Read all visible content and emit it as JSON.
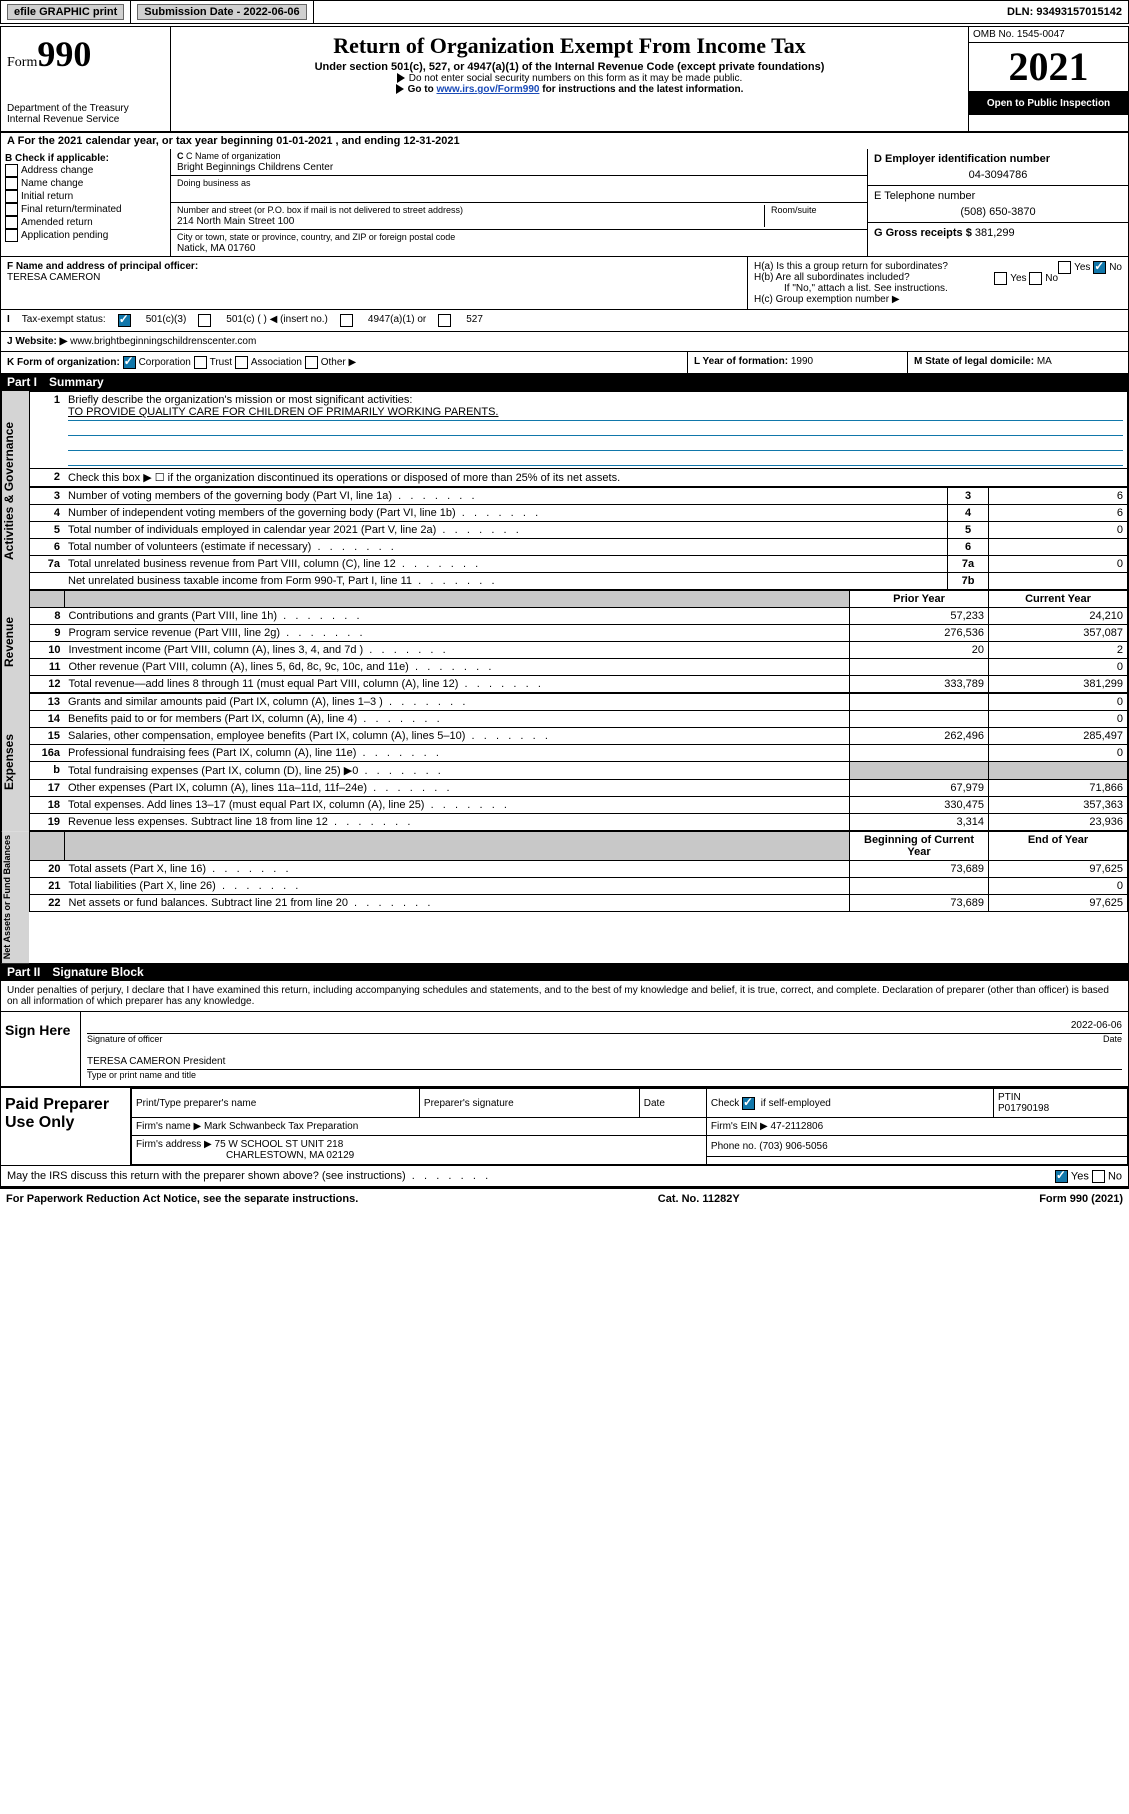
{
  "top": {
    "efile": "efile GRAPHIC print",
    "subDateLbl": "Submission Date - ",
    "subDate": "2022-06-06",
    "dlnLbl": "DLN: ",
    "dln": "93493157015142"
  },
  "hdr": {
    "formWord": "Form",
    "formNum": "990",
    "title": "Return of Organization Exempt From Income Tax",
    "sub": "Under section 501(c), 527, or 4947(a)(1) of the Internal Revenue Code (except private foundations)",
    "note1": "Do not enter social security numbers on this form as it may be made public.",
    "note2": "Go to ",
    "note2link": "www.irs.gov/Form990",
    "note2b": " for instructions and the latest information.",
    "dept": "Department of the Treasury",
    "irs": "Internal Revenue Service",
    "omb": "OMB No. 1545-0047",
    "year": "2021",
    "open": "Open to Public Inspection"
  },
  "A": {
    "text": "For the 2021 calendar year, or tax year beginning ",
    "d1": "01-01-2021",
    "mid": " , and ending ",
    "d2": "12-31-2021"
  },
  "B": {
    "lbl": "B Check if applicable:",
    "items": [
      "Address change",
      "Name change",
      "Initial return",
      "Final return/terminated",
      "Amended return",
      "Application pending"
    ]
  },
  "C": {
    "nameLbl": "C Name of organization",
    "name": "Bright Beginnings Childrens Center",
    "dbaLbl": "Doing business as",
    "dba": "",
    "addrLbl": "Number and street (or P.O. box if mail is not delivered to street address)",
    "roomLbl": "Room/suite",
    "addr": "214 North Main Street 100",
    "cityLbl": "City or town, state or province, country, and ZIP or foreign postal code",
    "city": "Natick, MA  01760"
  },
  "D": {
    "lbl": "D Employer identification number",
    "val": "04-3094786"
  },
  "E": {
    "lbl": "E Telephone number",
    "val": "(508) 650-3870"
  },
  "G": {
    "lbl": "G Gross receipts $ ",
    "val": "381,299"
  },
  "F": {
    "lbl": "F  Name and address of principal officer:",
    "val": "TERESA CAMERON"
  },
  "H": {
    "a": "H(a)  Is this a group return for subordinates?",
    "b": "H(b)  Are all subordinates included?",
    "bnote": "If \"No,\" attach a list. See instructions.",
    "c": "H(c)  Group exemption number ▶",
    "yes": "Yes",
    "no": "No"
  },
  "I": {
    "lbl": "Tax-exempt status:",
    "o1": "501(c)(3)",
    "o2": "501(c) (  ) ◀ (insert no.)",
    "o3": "4947(a)(1) or",
    "o4": "527"
  },
  "J": {
    "lbl": "Website: ▶",
    "val": "www.brightbeginningschildrenscenter.com"
  },
  "K": {
    "lbl": "K Form of organization:",
    "c": "Corporation",
    "t": "Trust",
    "a": "Association",
    "o": "Other ▶"
  },
  "L": {
    "lbl": "L Year of formation: ",
    "val": "1990"
  },
  "M": {
    "lbl": "M State of legal domicile: ",
    "val": "MA"
  },
  "P1": {
    "bar": "Part I",
    "title": "Summary",
    "l1": "Briefly describe the organization's mission or most significant activities:",
    "mission": "TO PROVIDE QUALITY CARE FOR CHILDREN OF PRIMARILY WORKING PARENTS.",
    "l2": "Check this box ▶ ☐  if the organization discontinued its operations or disposed of more than 25% of its net assets.",
    "rows": [
      {
        "n": "3",
        "t": "Number of voting members of the governing body (Part VI, line 1a)",
        "ln": "3",
        "v": "6"
      },
      {
        "n": "4",
        "t": "Number of independent voting members of the governing body (Part VI, line 1b)",
        "ln": "4",
        "v": "6"
      },
      {
        "n": "5",
        "t": "Total number of individuals employed in calendar year 2021 (Part V, line 2a)",
        "ln": "5",
        "v": "0"
      },
      {
        "n": "6",
        "t": "Total number of volunteers (estimate if necessary)",
        "ln": "6",
        "v": ""
      },
      {
        "n": "7a",
        "t": "Total unrelated business revenue from Part VIII, column (C), line 12",
        "ln": "7a",
        "v": "0"
      },
      {
        "n": "",
        "t": "Net unrelated business taxable income from Form 990-T, Part I, line 11",
        "ln": "7b",
        "v": ""
      }
    ],
    "colPrior": "Prior Year",
    "colCurr": "Current Year",
    "rev": [
      {
        "n": "8",
        "t": "Contributions and grants (Part VIII, line 1h)",
        "p": "57,233",
        "c": "24,210"
      },
      {
        "n": "9",
        "t": "Program service revenue (Part VIII, line 2g)",
        "p": "276,536",
        "c": "357,087"
      },
      {
        "n": "10",
        "t": "Investment income (Part VIII, column (A), lines 3, 4, and 7d )",
        "p": "20",
        "c": "2"
      },
      {
        "n": "11",
        "t": "Other revenue (Part VIII, column (A), lines 5, 6d, 8c, 9c, 10c, and 11e)",
        "p": "",
        "c": "0"
      },
      {
        "n": "12",
        "t": "Total revenue—add lines 8 through 11 (must equal Part VIII, column (A), line 12)",
        "p": "333,789",
        "c": "381,299"
      }
    ],
    "exp": [
      {
        "n": "13",
        "t": "Grants and similar amounts paid (Part IX, column (A), lines 1–3 )",
        "p": "",
        "c": "0"
      },
      {
        "n": "14",
        "t": "Benefits paid to or for members (Part IX, column (A), line 4)",
        "p": "",
        "c": "0"
      },
      {
        "n": "15",
        "t": "Salaries, other compensation, employee benefits (Part IX, column (A), lines 5–10)",
        "p": "262,496",
        "c": "285,497"
      },
      {
        "n": "16a",
        "t": "Professional fundraising fees (Part IX, column (A), line 11e)",
        "p": "",
        "c": "0"
      },
      {
        "n": "b",
        "t": "Total fundraising expenses (Part IX, column (D), line 25) ▶0",
        "p": "gray",
        "c": "gray"
      },
      {
        "n": "17",
        "t": "Other expenses (Part IX, column (A), lines 11a–11d, 11f–24e)",
        "p": "67,979",
        "c": "71,866"
      },
      {
        "n": "18",
        "t": "Total expenses. Add lines 13–17 (must equal Part IX, column (A), line 25)",
        "p": "330,475",
        "c": "357,363"
      },
      {
        "n": "19",
        "t": "Revenue less expenses. Subtract line 18 from line 12",
        "p": "3,314",
        "c": "23,936"
      }
    ],
    "colBeg": "Beginning of Current Year",
    "colEnd": "End of Year",
    "na": [
      {
        "n": "20",
        "t": "Total assets (Part X, line 16)",
        "p": "73,689",
        "c": "97,625"
      },
      {
        "n": "21",
        "t": "Total liabilities (Part X, line 26)",
        "p": "",
        "c": "0"
      },
      {
        "n": "22",
        "t": "Net assets or fund balances. Subtract line 21 from line 20",
        "p": "73,689",
        "c": "97,625"
      }
    ]
  },
  "P2": {
    "bar": "Part II",
    "title": "Signature Block",
    "decl": "Under penalties of perjury, I declare that I have examined this return, including accompanying schedules and statements, and to the best of my knowledge and belief, it is true, correct, and complete. Declaration of preparer (other than officer) is based on all information of which preparer has any knowledge.",
    "signHere": "Sign Here",
    "sigOff": "Signature of officer",
    "date": "Date",
    "sigDate": "2022-06-06",
    "officer": "TERESA CAMERON  President",
    "typeLbl": "Type or print name and title",
    "paid": "Paid Preparer Use Only",
    "pp": {
      "c1": "Print/Type preparer's name",
      "c2": "Preparer's signature",
      "c3": "Date",
      "c4": "Check ",
      "c4b": " if self-employed",
      "c5": "PTIN",
      "ptin": "P01790198",
      "firmLbl": "Firm's name    ▶",
      "firm": "Mark Schwanbeck Tax Preparation",
      "einLbl": "Firm's EIN ▶",
      "ein": "47-2112806",
      "addrLbl": "Firm's address ▶",
      "addr1": "75 W SCHOOL ST UNIT 218",
      "addr2": "CHARLESTOWN, MA  02129",
      "phLbl": "Phone no. ",
      "ph": "(703) 906-5056"
    },
    "may": "May the IRS discuss this return with the preparer shown above? (see instructions)"
  },
  "ftr": {
    "l": "For Paperwork Reduction Act Notice, see the separate instructions.",
    "c": "Cat. No. 11282Y",
    "r": "Form 990 (2021)"
  }
}
